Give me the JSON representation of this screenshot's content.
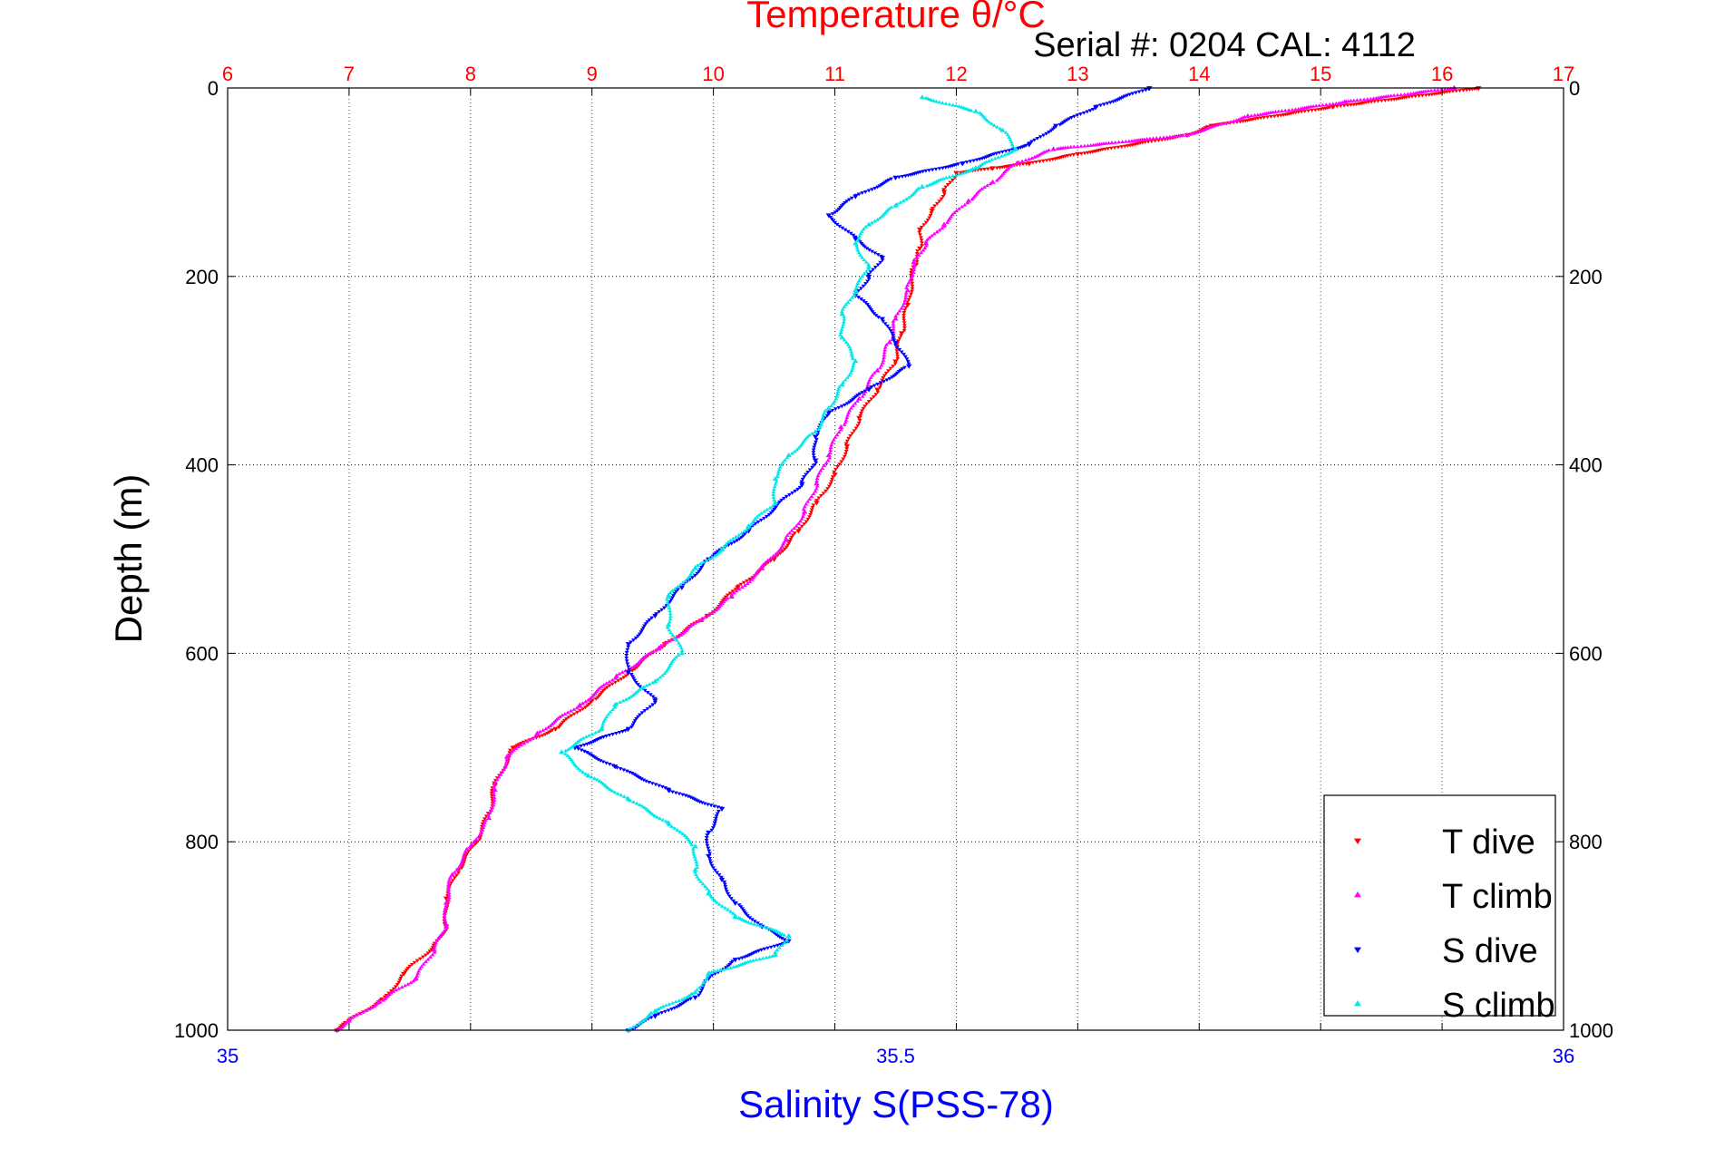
{
  "chart_data": {
    "type": "scatter",
    "title": "Temperature θ/°C",
    "subtitle": "Serial #: 0204  CAL: 4112",
    "ylabel": "Depth (m)",
    "xlabel": "Salinity S(PSS-78)",
    "top_axis": {
      "label": "Temperature θ/°C",
      "lim": [
        6,
        17
      ],
      "ticks": [
        "6",
        "7",
        "8",
        "9",
        "10",
        "11",
        "12",
        "13",
        "14",
        "15",
        "16",
        "17"
      ],
      "color": "#ff0000"
    },
    "bottom_axis": {
      "label": "Salinity S(PSS-78)",
      "lim": [
        35,
        36
      ],
      "ticks": [
        "35",
        "35.5",
        "36"
      ],
      "color": "#0000ff"
    },
    "y_axis": {
      "lim": [
        0,
        1000
      ],
      "reversed": true,
      "ticks": [
        "0",
        "200",
        "400",
        "600",
        "800",
        "1000"
      ]
    },
    "grid": true,
    "legend_position": "bottom-right",
    "series": [
      {
        "name": "T dive",
        "axis": "temperature",
        "color": "#ff0000",
        "marker": "triangle-down",
        "points": [
          [
            16.3,
            0
          ],
          [
            15.1,
            20
          ],
          [
            14.1,
            40
          ],
          [
            13.9,
            50
          ],
          [
            13.0,
            70
          ],
          [
            12.6,
            80
          ],
          [
            12.3,
            85
          ],
          [
            12.0,
            90
          ],
          [
            11.9,
            110
          ],
          [
            11.8,
            130
          ],
          [
            11.7,
            150
          ],
          [
            11.7,
            170
          ],
          [
            11.65,
            190
          ],
          [
            11.6,
            230
          ],
          [
            11.55,
            260
          ],
          [
            11.5,
            290
          ],
          [
            11.35,
            320
          ],
          [
            11.2,
            350
          ],
          [
            11.1,
            380
          ],
          [
            11.0,
            410
          ],
          [
            10.85,
            440
          ],
          [
            10.7,
            470
          ],
          [
            10.5,
            500
          ],
          [
            10.2,
            530
          ],
          [
            9.95,
            560
          ],
          [
            9.6,
            590
          ],
          [
            9.3,
            620
          ],
          [
            9.0,
            650
          ],
          [
            8.7,
            680
          ],
          [
            8.35,
            700
          ],
          [
            8.2,
            740
          ],
          [
            8.15,
            770
          ],
          [
            8.05,
            800
          ],
          [
            7.9,
            830
          ],
          [
            7.8,
            860
          ],
          [
            7.8,
            890
          ],
          [
            7.7,
            910
          ],
          [
            7.45,
            940
          ],
          [
            7.3,
            965
          ],
          [
            7.0,
            990
          ],
          [
            6.9,
            1000
          ]
        ]
      },
      {
        "name": "T climb",
        "axis": "temperature",
        "color": "#ff00ff",
        "marker": "triangle-up",
        "points": [
          [
            16.1,
            0
          ],
          [
            15.2,
            15
          ],
          [
            14.4,
            30
          ],
          [
            13.9,
            50
          ],
          [
            12.8,
            65
          ],
          [
            12.5,
            80
          ],
          [
            12.3,
            100
          ],
          [
            12.1,
            120
          ],
          [
            11.9,
            145
          ],
          [
            11.75,
            165
          ],
          [
            11.65,
            185
          ],
          [
            11.6,
            215
          ],
          [
            11.5,
            245
          ],
          [
            11.45,
            270
          ],
          [
            11.35,
            300
          ],
          [
            11.2,
            330
          ],
          [
            11.05,
            360
          ],
          [
            10.95,
            390
          ],
          [
            10.85,
            420
          ],
          [
            10.75,
            450
          ],
          [
            10.6,
            480
          ],
          [
            10.4,
            510
          ],
          [
            10.15,
            540
          ],
          [
            9.9,
            565
          ],
          [
            9.55,
            595
          ],
          [
            9.2,
            625
          ],
          [
            8.9,
            655
          ],
          [
            8.55,
            685
          ],
          [
            8.3,
            710
          ],
          [
            8.2,
            745
          ],
          [
            8.15,
            775
          ],
          [
            8.0,
            805
          ],
          [
            7.85,
            835
          ],
          [
            7.8,
            865
          ],
          [
            7.8,
            890
          ],
          [
            7.7,
            915
          ],
          [
            7.55,
            945
          ],
          [
            7.25,
            970
          ],
          [
            7.0,
            990
          ],
          [
            6.9,
            1000
          ]
        ]
      },
      {
        "name": "S dive",
        "axis": "salinity",
        "color": "#0000ff",
        "marker": "triangle-down",
        "points": [
          [
            35.69,
            0
          ],
          [
            35.65,
            20
          ],
          [
            35.62,
            40
          ],
          [
            35.6,
            60
          ],
          [
            35.55,
            80
          ],
          [
            35.5,
            95
          ],
          [
            35.47,
            115
          ],
          [
            35.45,
            135
          ],
          [
            35.47,
            160
          ],
          [
            35.49,
            180
          ],
          [
            35.48,
            200
          ],
          [
            35.47,
            220
          ],
          [
            35.49,
            245
          ],
          [
            35.5,
            270
          ],
          [
            35.51,
            295
          ],
          [
            35.48,
            320
          ],
          [
            35.45,
            345
          ],
          [
            35.44,
            370
          ],
          [
            35.44,
            395
          ],
          [
            35.43,
            420
          ],
          [
            35.41,
            445
          ],
          [
            35.39,
            470
          ],
          [
            35.36,
            500
          ],
          [
            35.34,
            530
          ],
          [
            35.32,
            560
          ],
          [
            35.3,
            590
          ],
          [
            35.3,
            620
          ],
          [
            35.32,
            650
          ],
          [
            35.3,
            680
          ],
          [
            35.26,
            700
          ],
          [
            35.29,
            720
          ],
          [
            35.33,
            745
          ],
          [
            35.37,
            765
          ],
          [
            35.36,
            790
          ],
          [
            35.36,
            815
          ],
          [
            35.37,
            840
          ],
          [
            35.38,
            865
          ],
          [
            35.4,
            890
          ],
          [
            35.42,
            905
          ],
          [
            35.38,
            925
          ],
          [
            35.36,
            945
          ],
          [
            35.35,
            965
          ],
          [
            35.32,
            985
          ],
          [
            35.3,
            1000
          ]
        ]
      },
      {
        "name": "S climb",
        "axis": "salinity",
        "color": "#00e8e8",
        "marker": "triangle-up",
        "points": [
          [
            35.52,
            10
          ],
          [
            35.56,
            25
          ],
          [
            35.58,
            45
          ],
          [
            35.59,
            65
          ],
          [
            35.56,
            85
          ],
          [
            35.52,
            105
          ],
          [
            35.5,
            125
          ],
          [
            35.48,
            145
          ],
          [
            35.47,
            165
          ],
          [
            35.48,
            190
          ],
          [
            35.47,
            215
          ],
          [
            35.46,
            240
          ],
          [
            35.46,
            265
          ],
          [
            35.47,
            290
          ],
          [
            35.46,
            315
          ],
          [
            35.45,
            340
          ],
          [
            35.44,
            365
          ],
          [
            35.42,
            390
          ],
          [
            35.41,
            415
          ],
          [
            35.41,
            440
          ],
          [
            35.39,
            465
          ],
          [
            35.37,
            490
          ],
          [
            35.35,
            510
          ],
          [
            35.33,
            540
          ],
          [
            35.33,
            570
          ],
          [
            35.34,
            600
          ],
          [
            35.32,
            630
          ],
          [
            35.29,
            655
          ],
          [
            35.28,
            680
          ],
          [
            35.25,
            705
          ],
          [
            35.27,
            730
          ],
          [
            35.3,
            755
          ],
          [
            35.33,
            780
          ],
          [
            35.35,
            805
          ],
          [
            35.35,
            830
          ],
          [
            35.36,
            855
          ],
          [
            35.38,
            880
          ],
          [
            35.42,
            900
          ],
          [
            35.41,
            920
          ],
          [
            35.36,
            940
          ],
          [
            35.35,
            960
          ],
          [
            35.32,
            980
          ],
          [
            35.3,
            1000
          ]
        ]
      }
    ]
  }
}
